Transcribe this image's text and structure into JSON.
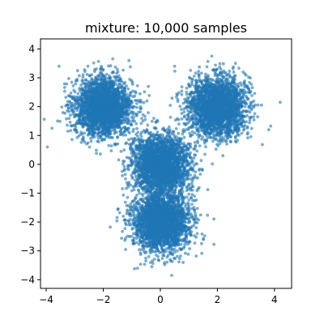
{
  "chart_data": {
    "type": "scatter",
    "title": "mixture: 10,000 samples",
    "xlabel": "",
    "ylabel": "",
    "xlim": [
      -4.2,
      4.6
    ],
    "ylim": [
      -4.3,
      4.35
    ],
    "xticks": [
      -4,
      -2,
      0,
      2,
      4
    ],
    "xtick_labels": [
      "−4",
      "−2",
      "0",
      "2",
      "4"
    ],
    "yticks": [
      -4,
      -3,
      -2,
      -1,
      0,
      1,
      2,
      3,
      4
    ],
    "ytick_labels": [
      "−4",
      "−3",
      "−2",
      "−1",
      "0",
      "1",
      "2",
      "3",
      "4"
    ],
    "grid": false,
    "legend": false,
    "color": "#1f77b4",
    "alpha": 0.6,
    "n_samples": 10000,
    "components": [
      {
        "mean": [
          -2,
          2
        ],
        "std": 0.5,
        "weight": 0.25
      },
      {
        "mean": [
          2,
          2
        ],
        "std": 0.5,
        "weight": 0.25
      },
      {
        "mean": [
          0,
          0
        ],
        "std": 0.5,
        "weight": 0.25
      },
      {
        "mean": [
          0,
          -2
        ],
        "std": 0.5,
        "weight": 0.25
      }
    ],
    "outliers": [
      [
        -3.8,
        1.25
      ],
      [
        4.2,
        2.15
      ],
      [
        3.8,
        1.2
      ],
      [
        -3.55,
        3.4
      ],
      [
        0.5,
        3.4
      ],
      [
        -1.1,
        3.6
      ],
      [
        1.8,
        3.75
      ],
      [
        0.8,
        -3.4
      ],
      [
        -0.8,
        -3.6
      ],
      [
        0.4,
        -3.85
      ],
      [
        -2.2,
        1.0
      ],
      [
        1.2,
        -1.1
      ],
      [
        -0.9,
        0.9
      ],
      [
        2.9,
        3.2
      ],
      [
        -2.9,
        3.25
      ],
      [
        -1.55,
        0.7
      ],
      [
        3.1,
        2.6
      ],
      [
        -0.3,
        -3.55
      ],
      [
        1.55,
        0.8
      ],
      [
        -1.3,
        -1.8
      ]
    ]
  }
}
